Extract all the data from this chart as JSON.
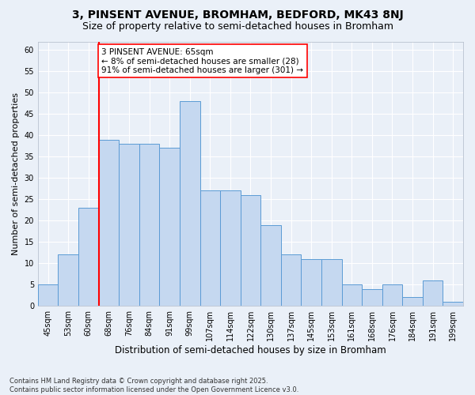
{
  "title": "3, PINSENT AVENUE, BROMHAM, BEDFORD, MK43 8NJ",
  "subtitle": "Size of property relative to semi-detached houses in Bromham",
  "xlabel": "Distribution of semi-detached houses by size in Bromham",
  "ylabel": "Number of semi-detached properties",
  "categories": [
    "45sqm",
    "53sqm",
    "60sqm",
    "68sqm",
    "76sqm",
    "84sqm",
    "91sqm",
    "99sqm",
    "107sqm",
    "114sqm",
    "122sqm",
    "130sqm",
    "137sqm",
    "145sqm",
    "153sqm",
    "161sqm",
    "168sqm",
    "176sqm",
    "184sqm",
    "191sqm",
    "199sqm"
  ],
  "values": [
    5,
    12,
    23,
    39,
    38,
    38,
    37,
    48,
    27,
    27,
    26,
    19,
    12,
    11,
    11,
    5,
    4,
    5,
    2,
    6,
    1
  ],
  "bar_color": "#c5d8f0",
  "bar_edge_color": "#5b9bd5",
  "vline_x_idx": 2,
  "annotation_text": "3 PINSENT AVENUE: 65sqm\n← 8% of semi-detached houses are smaller (28)\n91% of semi-detached houses are larger (301) →",
  "ylim": [
    0,
    62
  ],
  "yticks": [
    0,
    5,
    10,
    15,
    20,
    25,
    30,
    35,
    40,
    45,
    50,
    55,
    60
  ],
  "footer": "Contains HM Land Registry data © Crown copyright and database right 2025.\nContains public sector information licensed under the Open Government Licence v3.0.",
  "background_color": "#eaf0f8",
  "plot_background_color": "#eaf0f8",
  "grid_color": "#ffffff",
  "title_fontsize": 10,
  "subtitle_fontsize": 9,
  "tick_fontsize": 7,
  "ylabel_fontsize": 8,
  "xlabel_fontsize": 8.5,
  "footer_fontsize": 6,
  "annotation_fontsize": 7.5
}
